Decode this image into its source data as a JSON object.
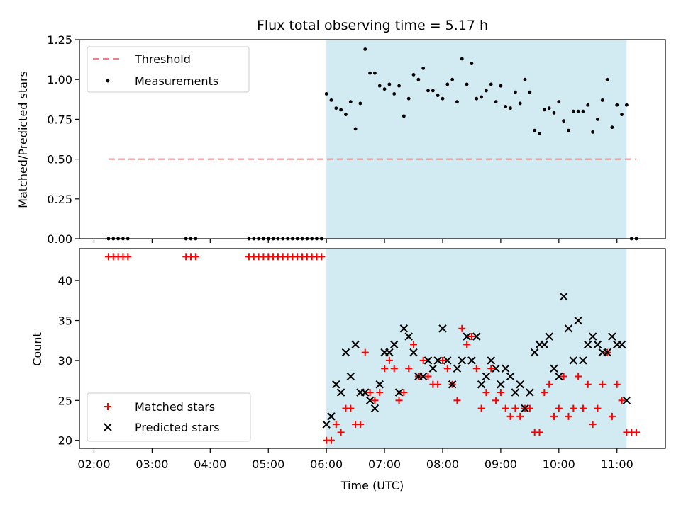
{
  "chart_data": [
    {
      "type": "scatter",
      "title": "Flux total observing time = 5.17 h",
      "xlabel": "",
      "ylabel": "Matched/Predicted stars",
      "xlim": [
        "01:45",
        "11:50"
      ],
      "ylim": [
        0,
        1.25
      ],
      "yticks": [
        "0.00",
        "0.25",
        "0.50",
        "0.75",
        "1.00",
        "1.25"
      ],
      "observing_window": {
        "start": "06:00",
        "end": "11:10",
        "color": "#add8e6"
      },
      "threshold": {
        "label": "Threshold",
        "value": 0.5,
        "x_start": "02:15",
        "x_end": "11:20",
        "color": "#f08080"
      },
      "legend": {
        "position": "top-left",
        "entries": [
          "Threshold",
          "Measurements"
        ]
      },
      "series": [
        {
          "name": "Measurements",
          "color": "#000000",
          "points": [
            [
              "02:15",
              0
            ],
            [
              "02:20",
              0
            ],
            [
              "02:25",
              0
            ],
            [
              "02:30",
              0
            ],
            [
              "02:35",
              0
            ],
            [
              "03:35",
              0
            ],
            [
              "03:40",
              0
            ],
            [
              "03:45",
              0
            ],
            [
              "04:40",
              0
            ],
            [
              "04:45",
              0
            ],
            [
              "04:50",
              0
            ],
            [
              "04:55",
              0
            ],
            [
              "05:00",
              0
            ],
            [
              "05:05",
              0
            ],
            [
              "05:10",
              0
            ],
            [
              "05:15",
              0
            ],
            [
              "05:20",
              0
            ],
            [
              "05:25",
              0
            ],
            [
              "05:30",
              0
            ],
            [
              "05:35",
              0
            ],
            [
              "05:40",
              0
            ],
            [
              "05:45",
              0
            ],
            [
              "05:50",
              0
            ],
            [
              "05:55",
              0
            ],
            [
              "06:00",
              0.91
            ],
            [
              "06:05",
              0.87
            ],
            [
              "06:10",
              0.82
            ],
            [
              "06:15",
              0.81
            ],
            [
              "06:20",
              0.78
            ],
            [
              "06:25",
              0.86
            ],
            [
              "06:30",
              0.69
            ],
            [
              "06:35",
              0.85
            ],
            [
              "06:40",
              1.19
            ],
            [
              "06:45",
              1.04
            ],
            [
              "06:50",
              1.04
            ],
            [
              "06:55",
              0.96
            ],
            [
              "07:00",
              0.94
            ],
            [
              "07:05",
              0.97
            ],
            [
              "07:10",
              0.91
            ],
            [
              "07:15",
              0.96
            ],
            [
              "07:20",
              0.77
            ],
            [
              "07:25",
              0.88
            ],
            [
              "07:30",
              1.03
            ],
            [
              "07:35",
              1.0
            ],
            [
              "07:40",
              1.07
            ],
            [
              "07:45",
              0.93
            ],
            [
              "07:50",
              0.93
            ],
            [
              "07:55",
              0.9
            ],
            [
              "08:00",
              0.88
            ],
            [
              "08:05",
              0.97
            ],
            [
              "08:10",
              1.0
            ],
            [
              "08:15",
              0.86
            ],
            [
              "08:20",
              1.13
            ],
            [
              "08:25",
              0.97
            ],
            [
              "08:30",
              1.1
            ],
            [
              "08:35",
              0.88
            ],
            [
              "08:40",
              0.89
            ],
            [
              "08:45",
              0.93
            ],
            [
              "08:50",
              0.97
            ],
            [
              "08:55",
              0.86
            ],
            [
              "09:00",
              0.96
            ],
            [
              "09:05",
              0.83
            ],
            [
              "09:10",
              0.82
            ],
            [
              "09:15",
              0.92
            ],
            [
              "09:20",
              0.85
            ],
            [
              "09:25",
              1.0
            ],
            [
              "09:30",
              0.92
            ],
            [
              "09:35",
              0.68
            ],
            [
              "09:40",
              0.66
            ],
            [
              "09:45",
              0.81
            ],
            [
              "09:50",
              0.82
            ],
            [
              "09:55",
              0.79
            ],
            [
              "10:00",
              0.86
            ],
            [
              "10:05",
              0.74
            ],
            [
              "10:10",
              0.68
            ],
            [
              "10:15",
              0.8
            ],
            [
              "10:20",
              0.8
            ],
            [
              "10:25",
              0.8
            ],
            [
              "10:30",
              0.84
            ],
            [
              "10:35",
              0.67
            ],
            [
              "10:40",
              0.75
            ],
            [
              "10:45",
              0.87
            ],
            [
              "10:50",
              1.0
            ],
            [
              "10:55",
              0.7
            ],
            [
              "11:00",
              0.84
            ],
            [
              "11:05",
              0.78
            ],
            [
              "11:10",
              0.84
            ],
            [
              "11:15",
              0
            ],
            [
              "11:20",
              0
            ]
          ]
        }
      ]
    },
    {
      "type": "scatter",
      "title": "",
      "xlabel": "Time (UTC)",
      "ylabel": "Count",
      "xlim": [
        "01:45",
        "11:50"
      ],
      "ylim": [
        19,
        44
      ],
      "yticks": [
        "20",
        "25",
        "30",
        "35",
        "40"
      ],
      "xticks": [
        "02:00",
        "03:00",
        "04:00",
        "05:00",
        "06:00",
        "07:00",
        "08:00",
        "09:00",
        "10:00",
        "11:00"
      ],
      "observing_window": {
        "start": "06:00",
        "end": "11:10",
        "color": "#add8e6"
      },
      "legend": {
        "position": "bottom-left",
        "entries": [
          "Matched stars",
          "Predicted stars"
        ]
      },
      "series": [
        {
          "name": "Matched stars",
          "marker": "+",
          "color": "#ff0000",
          "points": [
            [
              "02:15",
              43
            ],
            [
              "02:20",
              43
            ],
            [
              "02:25",
              43
            ],
            [
              "02:30",
              43
            ],
            [
              "02:35",
              43
            ],
            [
              "03:35",
              43
            ],
            [
              "03:40",
              43
            ],
            [
              "03:45",
              43
            ],
            [
              "04:40",
              43
            ],
            [
              "04:45",
              43
            ],
            [
              "04:50",
              43
            ],
            [
              "04:55",
              43
            ],
            [
              "05:00",
              43
            ],
            [
              "05:05",
              43
            ],
            [
              "05:10",
              43
            ],
            [
              "05:15",
              43
            ],
            [
              "05:20",
              43
            ],
            [
              "05:25",
              43
            ],
            [
              "05:30",
              43
            ],
            [
              "05:35",
              43
            ],
            [
              "05:40",
              43
            ],
            [
              "05:45",
              43
            ],
            [
              "05:50",
              43
            ],
            [
              "05:55",
              43
            ],
            [
              "06:00",
              20
            ],
            [
              "06:05",
              20
            ],
            [
              "06:10",
              22
            ],
            [
              "06:15",
              21
            ],
            [
              "06:20",
              24
            ],
            [
              "06:25",
              24
            ],
            [
              "06:30",
              22
            ],
            [
              "06:35",
              22
            ],
            [
              "06:40",
              31
            ],
            [
              "06:45",
              26
            ],
            [
              "06:50",
              25
            ],
            [
              "06:55",
              26
            ],
            [
              "07:00",
              29
            ],
            [
              "07:05",
              30
            ],
            [
              "07:10",
              29
            ],
            [
              "07:15",
              25
            ],
            [
              "07:20",
              26
            ],
            [
              "07:25",
              29
            ],
            [
              "07:30",
              32
            ],
            [
              "07:35",
              28
            ],
            [
              "07:40",
              30
            ],
            [
              "07:45",
              28
            ],
            [
              "07:50",
              27
            ],
            [
              "07:55",
              27
            ],
            [
              "08:00",
              30
            ],
            [
              "08:05",
              29
            ],
            [
              "08:10",
              27
            ],
            [
              "08:15",
              25
            ],
            [
              "08:20",
              34
            ],
            [
              "08:25",
              32
            ],
            [
              "08:30",
              33
            ],
            [
              "08:35",
              29
            ],
            [
              "08:40",
              24
            ],
            [
              "08:45",
              26
            ],
            [
              "08:50",
              29
            ],
            [
              "08:55",
              25
            ],
            [
              "09:00",
              26
            ],
            [
              "09:05",
              24
            ],
            [
              "09:10",
              23
            ],
            [
              "09:15",
              24
            ],
            [
              "09:20",
              23
            ],
            [
              "09:25",
              24
            ],
            [
              "09:30",
              24
            ],
            [
              "09:35",
              21
            ],
            [
              "09:40",
              21
            ],
            [
              "09:45",
              26
            ],
            [
              "09:50",
              27
            ],
            [
              "09:55",
              23
            ],
            [
              "10:00",
              24
            ],
            [
              "10:05",
              28
            ],
            [
              "10:10",
              23
            ],
            [
              "10:15",
              24
            ],
            [
              "10:20",
              28
            ],
            [
              "10:25",
              24
            ],
            [
              "10:30",
              27
            ],
            [
              "10:35",
              22
            ],
            [
              "10:40",
              24
            ],
            [
              "10:45",
              27
            ],
            [
              "10:50",
              31
            ],
            [
              "10:55",
              23
            ],
            [
              "11:00",
              27
            ],
            [
              "11:05",
              25
            ],
            [
              "11:10",
              21
            ],
            [
              "11:15",
              21
            ],
            [
              "11:20",
              21
            ]
          ]
        },
        {
          "name": "Predicted stars",
          "marker": "x",
          "color": "#000000",
          "points": [
            [
              "06:00",
              22
            ],
            [
              "06:05",
              23
            ],
            [
              "06:10",
              27
            ],
            [
              "06:15",
              26
            ],
            [
              "06:20",
              31
            ],
            [
              "06:25",
              28
            ],
            [
              "06:30",
              32
            ],
            [
              "06:35",
              26
            ],
            [
              "06:40",
              26
            ],
            [
              "06:45",
              25
            ],
            [
              "06:50",
              24
            ],
            [
              "06:55",
              27
            ],
            [
              "07:00",
              31
            ],
            [
              "07:05",
              31
            ],
            [
              "07:10",
              32
            ],
            [
              "07:15",
              26
            ],
            [
              "07:20",
              34
            ],
            [
              "07:25",
              33
            ],
            [
              "07:30",
              31
            ],
            [
              "07:35",
              28
            ],
            [
              "07:40",
              28
            ],
            [
              "07:45",
              30
            ],
            [
              "07:50",
              29
            ],
            [
              "07:55",
              30
            ],
            [
              "08:00",
              34
            ],
            [
              "08:05",
              30
            ],
            [
              "08:10",
              27
            ],
            [
              "08:15",
              29
            ],
            [
              "08:20",
              30
            ],
            [
              "08:25",
              33
            ],
            [
              "08:30",
              30
            ],
            [
              "08:35",
              33
            ],
            [
              "08:40",
              27
            ],
            [
              "08:45",
              28
            ],
            [
              "08:50",
              30
            ],
            [
              "08:55",
              29
            ],
            [
              "09:00",
              27
            ],
            [
              "09:05",
              29
            ],
            [
              "09:10",
              28
            ],
            [
              "09:15",
              26
            ],
            [
              "09:20",
              27
            ],
            [
              "09:25",
              24
            ],
            [
              "09:30",
              26
            ],
            [
              "09:35",
              31
            ],
            [
              "09:40",
              32
            ],
            [
              "09:45",
              32
            ],
            [
              "09:50",
              33
            ],
            [
              "09:55",
              29
            ],
            [
              "10:00",
              28
            ],
            [
              "10:05",
              38
            ],
            [
              "10:10",
              34
            ],
            [
              "10:15",
              30
            ],
            [
              "10:20",
              35
            ],
            [
              "10:25",
              30
            ],
            [
              "10:30",
              32
            ],
            [
              "10:35",
              33
            ],
            [
              "10:40",
              32
            ],
            [
              "10:45",
              31
            ],
            [
              "10:50",
              31
            ],
            [
              "10:55",
              33
            ],
            [
              "11:00",
              32
            ],
            [
              "11:05",
              32
            ],
            [
              "11:10",
              25
            ]
          ]
        }
      ]
    }
  ]
}
